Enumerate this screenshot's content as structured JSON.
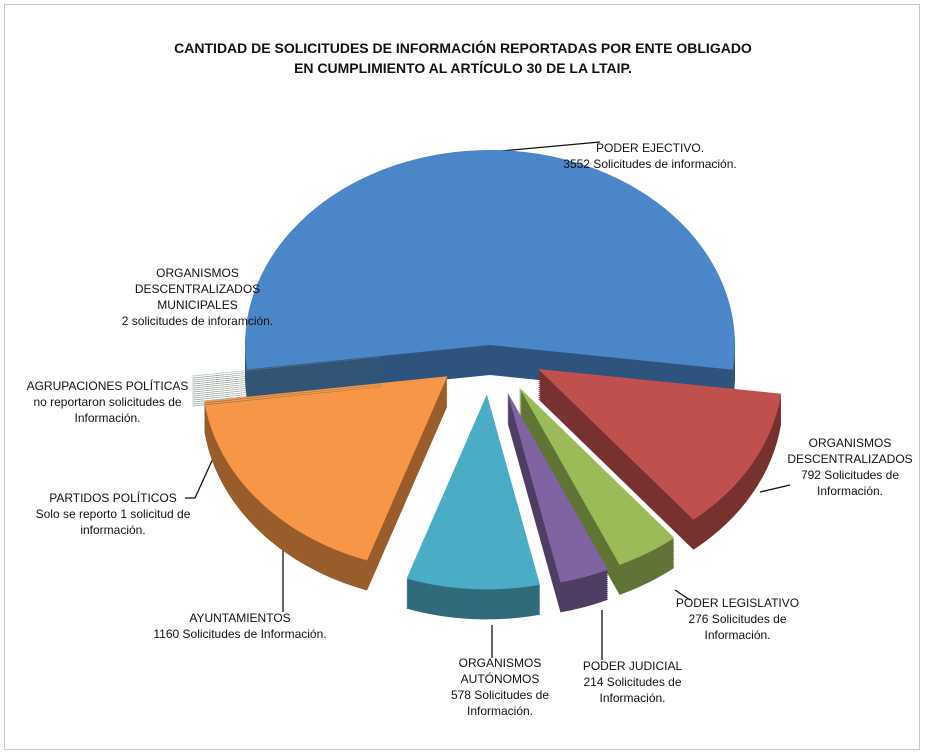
{
  "chart_data": {
    "type": "pie",
    "title": [
      "CANTIDAD DE SOLICITUDES DE INFORMACIÓN  REPORTADAS POR ENTE OBLIGADO",
      "EN CUMPLIMIENTO AL ARTÍCULO 30 DE LA LTAIP."
    ],
    "categories": [
      "PODER EJECTIVO.",
      "ORGANISMOS DESCENTRALIZADOS",
      "PODER LEGISLATIVO",
      "PODER JUDICIAL",
      "ORGANISMOS AUTÓNOMOS",
      "AYUNTAMIENTOS",
      "PARTIDOS POLÍTICOS",
      "AGRUPACIONES POLÍTICAS",
      "ORGANISMOS DESCENTRALIZADOS MUNICIPALES"
    ],
    "values": [
      3552,
      792,
      276,
      214,
      578,
      1160,
      1,
      0,
      2
    ],
    "value_labels": [
      "3552 Solicitudes de información.",
      "792 Solicitudes de Información.",
      "276 Solicitudes de Información.",
      "214 Solicitudes de Información.",
      "578 Solicitudes de Información.",
      "1160 Solicitudes de Información.",
      "Solo se reporto 1 solicitud de información.",
      "no reportaron solicitudes de Información.",
      "2 solicitudes de inforamción."
    ],
    "colors": [
      "#4a86c8",
      "#c0504d",
      "#9bbb59",
      "#8064a2",
      "#4bacc6",
      "#f79646",
      "#6d8fb3",
      "#7f7f7f",
      "#8aa36b"
    ]
  }
}
